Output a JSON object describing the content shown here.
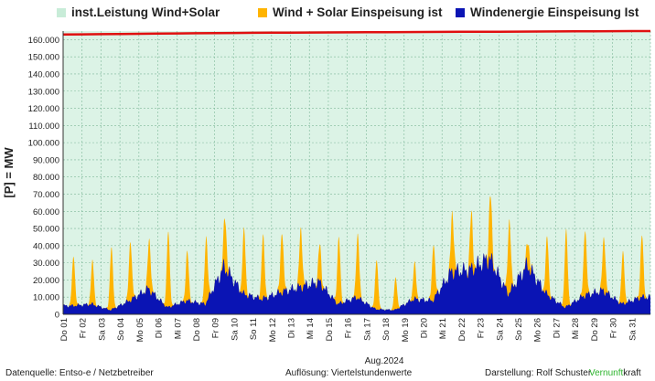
{
  "legend": [
    {
      "label": "inst.Leistung Wind+Solar",
      "color": "#c8ecd8"
    },
    {
      "label": "Wind + Solar Einspeisung ist",
      "color": "#ffb400"
    },
    {
      "label": "Windenergie Einspeisung Ist",
      "color": "#0a14b4"
    }
  ],
  "colors": {
    "background": "#dcf3e6",
    "installed_line": "#e01010",
    "solar_wind": "#ffb400",
    "wind": "#0a14b4",
    "grid": "#7fb89a"
  },
  "footer": {
    "source": "Datenquelle: Entso-e  / Netzbetreiber",
    "resolution": "Auflösung: Viertelstundenwerte",
    "author": "Darstellung:  Rolf Schuster",
    "brand_a": "Vernunft",
    "brand_b": "kraft"
  },
  "chart_data": {
    "type": "area",
    "title": "",
    "xlabel": "Aug.2024",
    "ylabel": "[P] =   MW",
    "ylim": [
      0,
      165000
    ],
    "y_ticks": [
      "0",
      "10.000",
      "20.000",
      "30.000",
      "40.000",
      "50.000",
      "60.000",
      "70.000",
      "80.000",
      "90.000",
      "100.000",
      "110.000",
      "120.000",
      "130.000",
      "140.000",
      "150.000",
      "160.000"
    ],
    "grid": true,
    "legend_position": "top",
    "categories": [
      "Do 01",
      "Fr 02",
      "Sa 03",
      "So 04",
      "Mo 05",
      "Di 06",
      "Mi 07",
      "Do 08",
      "Fr 09",
      "Sa 10",
      "So 11",
      "Mo 12",
      "Di 13",
      "Mi 14",
      "Do 15",
      "Fr 16",
      "Sa 17",
      "So 18",
      "Mo 19",
      "Di 20",
      "Mi 21",
      "Do 22",
      "Fr 23",
      "Sa 24",
      "So 25",
      "Mo 26",
      "Di 27",
      "Mi 28",
      "Do 29",
      "Fr 30",
      "Sa 31"
    ],
    "series": [
      {
        "name": "inst.Leistung Wind+Solar",
        "values": [
          163000,
          163100,
          163200,
          163300,
          163400,
          163500,
          163600,
          163700,
          163800,
          163900,
          164000,
          164050,
          164100,
          164150,
          164200,
          164250,
          164300,
          164350,
          164400,
          164450,
          164500,
          164550,
          164600,
          164650,
          164700,
          164750,
          164800,
          164850,
          164900,
          164950,
          165000
        ]
      },
      {
        "name": "Wind + Solar Einspeisung ist",
        "values": [
          34000,
          31000,
          39000,
          43000,
          44000,
          48000,
          37000,
          45000,
          58000,
          49000,
          46000,
          49000,
          50000,
          40000,
          45000,
          48000,
          32000,
          21000,
          30000,
          41000,
          60000,
          57000,
          70000,
          55000,
          44000,
          45000,
          49000,
          50000,
          46000,
          36000,
          46000
        ]
      },
      {
        "name": "Windenergie Einspeisung Ist",
        "values": [
          5000,
          6000,
          2500,
          8000,
          15000,
          4000,
          8000,
          6000,
          28000,
          12000,
          9000,
          13000,
          16000,
          19000,
          6000,
          10000,
          3000,
          2500,
          9000,
          8000,
          25000,
          26000,
          33000,
          12000,
          29000,
          12000,
          4000,
          11000,
          14000,
          6000,
          10000
        ]
      }
    ]
  }
}
